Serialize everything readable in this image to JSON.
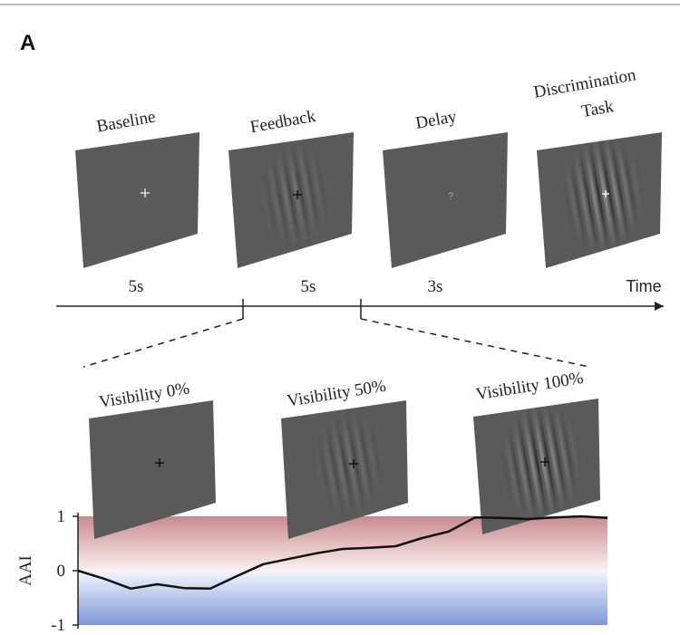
{
  "header": {
    "label": "A"
  },
  "trial": {
    "phases": [
      {
        "lines": [
          "Baseline"
        ]
      },
      {
        "lines": [
          "Feedback"
        ]
      },
      {
        "lines": [
          "Delay"
        ]
      },
      {
        "lines": [
          "Discrimination",
          "Task"
        ]
      }
    ],
    "durations": [
      "5s",
      "5s",
      "3s"
    ],
    "time_label": "Time"
  },
  "feedback": {
    "visibility": [
      "Visibility 0%",
      "Visibility 50%",
      "Visibility 100%"
    ]
  },
  "aai_plot": {
    "ylabel": "AAI",
    "ylim": [
      -1,
      1
    ],
    "yticks": [
      1,
      0,
      -1
    ],
    "values": [
      0,
      -0.15,
      -0.33,
      -0.25,
      -0.32,
      -0.33,
      -0.1,
      0.12,
      0.22,
      0.32,
      0.4,
      0.42,
      0.45,
      0.6,
      0.72,
      0.98,
      0.97,
      0.95,
      0.98,
      1.0,
      0.97
    ]
  }
}
